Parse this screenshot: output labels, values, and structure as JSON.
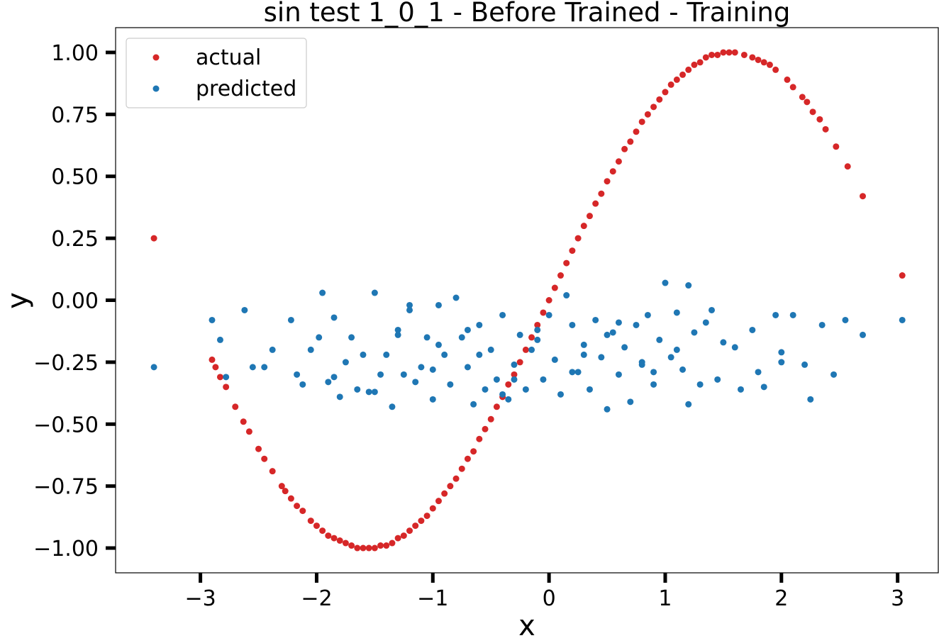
{
  "chart_data": {
    "type": "scatter",
    "title": "sin test 1_0_1 - Before Trained - Training",
    "xlabel": "x",
    "ylabel": "y",
    "xlim": [
      -3.73,
      3.35
    ],
    "ylim": [
      -1.1,
      1.1
    ],
    "xticks": [
      -3,
      -2,
      -1,
      0,
      1,
      2,
      3
    ],
    "xtick_labels": [
      "−3",
      "−2",
      "−1",
      "0",
      "1",
      "2",
      "3"
    ],
    "yticks": [
      1.0,
      0.75,
      0.5,
      0.25,
      0.0,
      -0.25,
      -0.5,
      -0.75,
      -1.0
    ],
    "ytick_labels": [
      "1.00",
      "0.75",
      "0.50",
      "0.25",
      "0.00",
      "−0.25",
      "−0.50",
      "−0.75",
      "−1.00"
    ],
    "grid": false,
    "legend_position": "top-left",
    "series": [
      {
        "name": "actual",
        "color": "#d62728",
        "x": [
          -3.4,
          -2.9,
          -2.87,
          -2.83,
          -2.78,
          -2.7,
          -2.63,
          -2.58,
          -2.5,
          -2.45,
          -2.38,
          -2.3,
          -2.27,
          -2.22,
          -2.17,
          -2.12,
          -2.05,
          -2.0,
          -1.95,
          -1.9,
          -1.85,
          -1.8,
          -1.75,
          -1.7,
          -1.65,
          -1.6,
          -1.55,
          -1.5,
          -1.45,
          -1.4,
          -1.35,
          -1.3,
          -1.25,
          -1.2,
          -1.15,
          -1.1,
          -1.05,
          -1.0,
          -0.95,
          -0.9,
          -0.85,
          -0.8,
          -0.75,
          -0.7,
          -0.65,
          -0.6,
          -0.55,
          -0.5,
          -0.45,
          -0.4,
          -0.35,
          -0.3,
          -0.25,
          -0.2,
          -0.15,
          -0.1,
          -0.05,
          0.0,
          0.05,
          0.1,
          0.15,
          0.2,
          0.25,
          0.3,
          0.35,
          0.4,
          0.45,
          0.5,
          0.55,
          0.6,
          0.65,
          0.7,
          0.75,
          0.8,
          0.85,
          0.9,
          0.95,
          1.0,
          1.05,
          1.1,
          1.15,
          1.2,
          1.25,
          1.3,
          1.35,
          1.4,
          1.45,
          1.5,
          1.55,
          1.6,
          1.68,
          1.75,
          1.8,
          1.85,
          1.9,
          1.95,
          2.05,
          2.1,
          2.18,
          2.22,
          2.27,
          2.33,
          2.38,
          2.47,
          2.57,
          2.7,
          3.04
        ],
        "y": [
          0.25,
          -0.24,
          -0.27,
          -0.31,
          -0.35,
          -0.43,
          -0.49,
          -0.53,
          -0.6,
          -0.64,
          -0.69,
          -0.75,
          -0.77,
          -0.8,
          -0.83,
          -0.85,
          -0.89,
          -0.91,
          -0.93,
          -0.95,
          -0.96,
          -0.97,
          -0.98,
          -0.99,
          -1.0,
          -1.0,
          -1.0,
          -1.0,
          -0.99,
          -0.99,
          -0.98,
          -0.96,
          -0.95,
          -0.93,
          -0.91,
          -0.89,
          -0.87,
          -0.84,
          -0.81,
          -0.78,
          -0.75,
          -0.72,
          -0.68,
          -0.64,
          -0.61,
          -0.56,
          -0.52,
          -0.48,
          -0.43,
          -0.39,
          -0.34,
          -0.3,
          -0.25,
          -0.2,
          -0.15,
          -0.1,
          -0.05,
          0.0,
          0.05,
          0.1,
          0.15,
          0.2,
          0.25,
          0.3,
          0.34,
          0.39,
          0.43,
          0.48,
          0.52,
          0.56,
          0.61,
          0.64,
          0.68,
          0.72,
          0.75,
          0.78,
          0.81,
          0.84,
          0.87,
          0.89,
          0.91,
          0.93,
          0.95,
          0.96,
          0.98,
          0.99,
          0.99,
          1.0,
          1.0,
          1.0,
          0.99,
          0.98,
          0.97,
          0.96,
          0.95,
          0.93,
          0.89,
          0.86,
          0.82,
          0.8,
          0.76,
          0.73,
          0.69,
          0.62,
          0.54,
          0.42,
          0.1
        ]
      },
      {
        "name": "predicted",
        "color": "#1f77b4",
        "x": [
          -3.4,
          -2.9,
          -2.83,
          -2.78,
          -2.62,
          -2.55,
          -2.45,
          -2.38,
          -2.22,
          -2.17,
          -2.12,
          -2.05,
          -1.98,
          -1.95,
          -1.9,
          -1.85,
          -1.8,
          -1.75,
          -1.7,
          -1.65,
          -1.6,
          -1.55,
          -1.5,
          -1.45,
          -1.4,
          -1.35,
          -1.3,
          -1.25,
          -1.2,
          -1.15,
          -1.1,
          -1.05,
          -1.0,
          -0.95,
          -0.9,
          -0.85,
          -0.8,
          -0.75,
          -0.7,
          -0.65,
          -0.6,
          -0.55,
          -0.5,
          -0.45,
          -0.4,
          -0.35,
          -0.3,
          -0.25,
          -0.2,
          -0.15,
          -0.1,
          -0.05,
          0.0,
          0.05,
          0.1,
          0.15,
          0.2,
          0.25,
          0.3,
          0.35,
          0.4,
          0.45,
          0.5,
          0.55,
          0.6,
          0.65,
          0.7,
          0.75,
          0.8,
          0.85,
          0.9,
          0.95,
          1.0,
          1.05,
          1.1,
          1.15,
          1.2,
          1.25,
          1.3,
          1.35,
          1.45,
          1.5,
          1.65,
          1.75,
          1.8,
          1.85,
          1.95,
          2.0,
          2.1,
          2.2,
          2.25,
          2.35,
          2.45,
          2.55,
          2.7,
          3.04,
          -1.85,
          -1.5,
          -1.2,
          -0.95,
          -0.7,
          -0.4,
          -0.1,
          0.3,
          0.6,
          0.9,
          1.1,
          1.4,
          -1.3,
          -1.0,
          -0.6,
          -0.3,
          0.2,
          0.5,
          0.8,
          1.2,
          1.6,
          2.0
        ],
        "y": [
          -0.27,
          -0.08,
          -0.16,
          -0.31,
          -0.04,
          -0.27,
          -0.27,
          -0.2,
          -0.08,
          -0.3,
          -0.34,
          -0.2,
          -0.15,
          0.03,
          -0.33,
          -0.07,
          -0.39,
          -0.25,
          -0.15,
          -0.36,
          -0.22,
          -0.37,
          0.03,
          -0.3,
          -0.22,
          -0.43,
          -0.12,
          -0.3,
          -0.04,
          -0.33,
          -0.27,
          -0.15,
          -0.4,
          -0.02,
          -0.22,
          -0.34,
          0.01,
          -0.15,
          -0.27,
          -0.42,
          -0.1,
          -0.36,
          -0.2,
          -0.32,
          -0.06,
          -0.4,
          -0.26,
          -0.14,
          -0.36,
          -0.2,
          -0.12,
          -0.32,
          -0.06,
          -0.24,
          -0.38,
          0.02,
          -0.1,
          -0.29,
          -0.18,
          -0.36,
          -0.08,
          -0.23,
          -0.44,
          -0.13,
          -0.3,
          -0.19,
          -0.41,
          -0.1,
          -0.26,
          -0.06,
          -0.34,
          -0.16,
          0.07,
          -0.23,
          -0.05,
          -0.28,
          0.06,
          -0.13,
          -0.34,
          -0.09,
          -0.32,
          -0.17,
          -0.36,
          -0.12,
          -0.29,
          -0.35,
          -0.06,
          -0.21,
          -0.06,
          -0.26,
          -0.4,
          -0.1,
          -0.3,
          -0.08,
          -0.14,
          -0.08,
          -0.31,
          -0.37,
          -0.02,
          -0.18,
          -0.12,
          -0.38,
          -0.16,
          -0.22,
          -0.09,
          -0.29,
          -0.2,
          -0.04,
          -0.14,
          -0.28,
          -0.22,
          -0.32,
          -0.29,
          -0.14,
          -0.25,
          -0.42,
          -0.19,
          -0.25
        ]
      }
    ]
  }
}
